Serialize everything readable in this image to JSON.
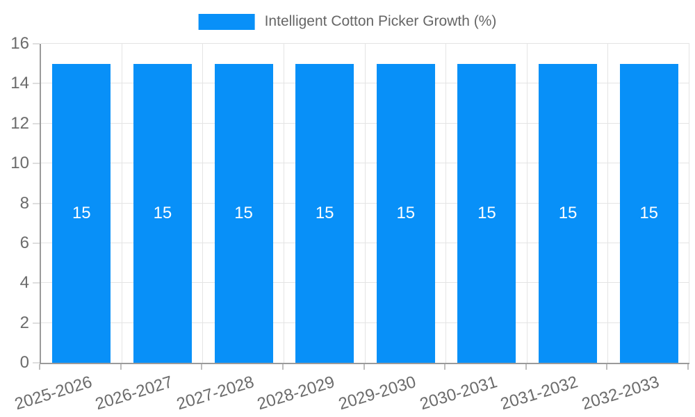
{
  "chart_data": {
    "type": "bar",
    "title": "Intelligent Cotton Picker Growth (%)",
    "legend_entries": [
      "Intelligent Cotton Picker Growth (%)"
    ],
    "legend_position": "top-center",
    "categories": [
      "2025-2026",
      "2026-2027",
      "2027-2028",
      "2028-2029",
      "2029-2030",
      "2030-2031",
      "2031-2032",
      "2032-2033"
    ],
    "values": [
      15,
      15,
      15,
      15,
      15,
      15,
      15,
      15
    ],
    "value_labels_shown": true,
    "xlabel": "",
    "ylabel": "",
    "ylim": [
      0,
      16
    ],
    "yticks": [
      0,
      2,
      4,
      6,
      8,
      10,
      12,
      14,
      16
    ],
    "grid": true
  },
  "colors": {
    "bar": "#0890F8",
    "grid": "#e4e4e4",
    "axis": "#9a9a9a",
    "tick": "#bdbdbd",
    "axis_text": "#6b6b6b",
    "legend_text": "#666666",
    "value_text": "#ffffff",
    "background": "#ffffff"
  }
}
